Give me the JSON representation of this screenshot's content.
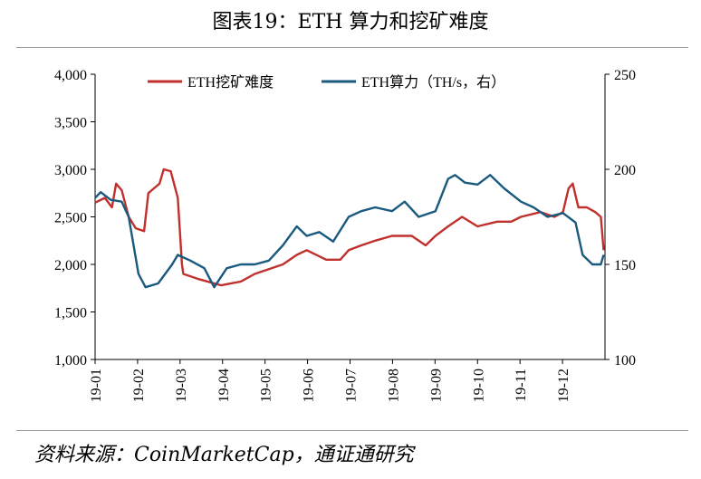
{
  "title": "图表19：ETH 算力和挖矿难度",
  "source": "资料来源：CoinMarketCap，通证通研究",
  "chart_data": {
    "type": "line",
    "x_ticks": [
      "19-01",
      "19-02",
      "19-03",
      "19-04",
      "19-05",
      "19-06",
      "19-07",
      "19-08",
      "19-09",
      "19-10",
      "19-11",
      "19-12"
    ],
    "xlim": [
      "2019-01-01",
      "2019-12-31"
    ],
    "ylim_left": [
      1000,
      4000
    ],
    "yticks_left": [
      "1,000",
      "1,500",
      "2,000",
      "2,500",
      "3,000",
      "3,500",
      "4,000"
    ],
    "ylim_right": [
      100,
      250
    ],
    "yticks_right": [
      "100",
      "150",
      "200",
      "250"
    ],
    "grid": false,
    "legend": "top",
    "series": [
      {
        "name": "ETH挖矿难度",
        "axis": "left",
        "color": "#c0302c",
        "x": [
          "2019-01-01",
          "2019-01-08",
          "2019-01-13",
          "2019-01-16",
          "2019-01-20",
          "2019-01-25",
          "2019-01-30",
          "2019-02-05",
          "2019-02-08",
          "2019-02-12",
          "2019-02-16",
          "2019-02-19",
          "2019-02-24",
          "2019-03-01",
          "2019-03-04",
          "2019-03-05",
          "2019-03-15",
          "2019-04-01",
          "2019-04-15",
          "2019-04-25",
          "2019-05-15",
          "2019-05-25",
          "2019-06-01",
          "2019-06-15",
          "2019-06-25",
          "2019-07-01",
          "2019-07-10",
          "2019-07-20",
          "2019-08-01",
          "2019-08-15",
          "2019-08-25",
          "2019-09-01",
          "2019-09-10",
          "2019-09-20",
          "2019-10-01",
          "2019-10-15",
          "2019-10-25",
          "2019-11-01",
          "2019-11-15",
          "2019-11-25",
          "2019-12-01",
          "2019-12-05",
          "2019-12-08",
          "2019-12-12",
          "2019-12-18",
          "2019-12-24",
          "2019-12-28",
          "2019-12-30"
        ],
        "values": [
          2650,
          2700,
          2600,
          2850,
          2780,
          2500,
          2380,
          2350,
          2750,
          2800,
          2850,
          3000,
          2980,
          2700,
          2000,
          1900,
          1850,
          1780,
          1820,
          1900,
          2000,
          2100,
          2150,
          2050,
          2050,
          2150,
          2200,
          2250,
          2300,
          2300,
          2200,
          2300,
          2400,
          2500,
          2400,
          2450,
          2450,
          2500,
          2550,
          2500,
          2550,
          2800,
          2850,
          2600,
          2600,
          2550,
          2500,
          2150
        ]
      },
      {
        "name": "ETH算力（TH/s，右）",
        "axis": "right",
        "color": "#1a5a7e",
        "x": [
          "2019-01-01",
          "2019-01-05",
          "2019-01-12",
          "2019-01-20",
          "2019-01-25",
          "2019-02-01",
          "2019-02-06",
          "2019-02-15",
          "2019-02-25",
          "2019-03-01",
          "2019-03-10",
          "2019-03-20",
          "2019-03-27",
          "2019-04-05",
          "2019-04-15",
          "2019-04-25",
          "2019-05-05",
          "2019-05-15",
          "2019-05-25",
          "2019-06-01",
          "2019-06-10",
          "2019-06-20",
          "2019-07-01",
          "2019-07-10",
          "2019-07-20",
          "2019-08-01",
          "2019-08-10",
          "2019-08-20",
          "2019-09-01",
          "2019-09-10",
          "2019-09-15",
          "2019-09-22",
          "2019-10-01",
          "2019-10-10",
          "2019-10-20",
          "2019-11-01",
          "2019-11-10",
          "2019-11-20",
          "2019-12-01",
          "2019-12-10",
          "2019-12-15",
          "2019-12-22",
          "2019-12-28",
          "2019-12-30"
        ],
        "values": [
          185,
          188,
          184,
          183,
          175,
          145,
          138,
          140,
          150,
          155,
          152,
          148,
          138,
          148,
          150,
          150,
          152,
          160,
          170,
          165,
          167,
          162,
          175,
          178,
          180,
          178,
          183,
          175,
          178,
          195,
          197,
          193,
          192,
          197,
          190,
          183,
          180,
          175,
          177,
          172,
          155,
          150,
          150,
          155
        ]
      }
    ]
  }
}
